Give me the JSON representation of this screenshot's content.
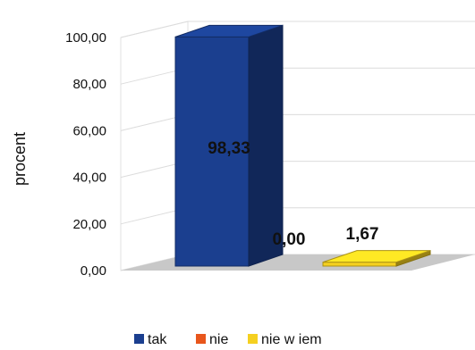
{
  "chart_data": {
    "type": "bar",
    "style": "3d-column",
    "title": "",
    "ylabel": "procent",
    "xlabel": "",
    "ylim": [
      0,
      100
    ],
    "ytick_labels": [
      "0,00",
      "20,00",
      "40,00",
      "60,00",
      "80,00",
      "100,00"
    ],
    "categories": [
      "tak",
      "nie",
      "nie w iem"
    ],
    "values": [
      98.33,
      0.0,
      1.67
    ],
    "value_labels": [
      "98,33",
      "0,00",
      "1,67"
    ],
    "colors": [
      "#1b3f8f",
      "#e8561c",
      "#f5d020"
    ],
    "legend": {
      "position": "bottom",
      "entries": [
        "tak",
        "nie",
        "nie w iem"
      ]
    },
    "grid": true
  }
}
